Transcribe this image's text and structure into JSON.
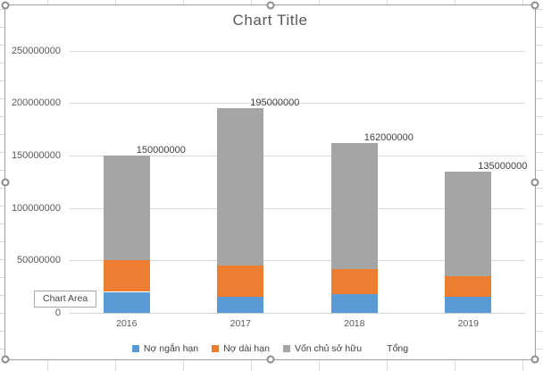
{
  "app": {
    "context": "spreadsheet-chart-selected"
  },
  "tooltip": {
    "text": "Chart Area"
  },
  "chart_data": {
    "type": "bar",
    "stacked": true,
    "title": "Chart Title",
    "categories": [
      "2016",
      "2017",
      "2018",
      "2019"
    ],
    "series": [
      {
        "name": "Nợ ngắn hạn",
        "color": "#5B9BD5",
        "values": [
          20000000,
          15000000,
          18000000,
          15000000
        ]
      },
      {
        "name": "Nợ dài hạn",
        "color": "#ED7D31",
        "values": [
          30000000,
          30000000,
          24000000,
          20000000
        ]
      },
      {
        "name": "Vốn chủ sở hữu",
        "color": "#A5A5A5",
        "values": [
          100000000,
          150000000,
          120000000,
          100000000
        ]
      }
    ],
    "totals_series": {
      "name": "Tổng",
      "labels": [
        "150000000",
        "195000000",
        "162000000",
        "135000000"
      ]
    },
    "y_axis": {
      "min": 0,
      "max": 250000000,
      "step": 50000000,
      "tick_labels": [
        "0",
        "50000000",
        "100000000",
        "150000000",
        "200000000",
        "250000000"
      ]
    },
    "legend": [
      "Nợ ngắn hạn",
      "Nợ dài hạn",
      "Vốn chủ sở hữu",
      "Tổng"
    ],
    "legend_position": "bottom",
    "grid": true,
    "colors": {
      "gridline": "#D9D9D9",
      "axis_text": "#595959",
      "data_label": "#404040"
    }
  }
}
